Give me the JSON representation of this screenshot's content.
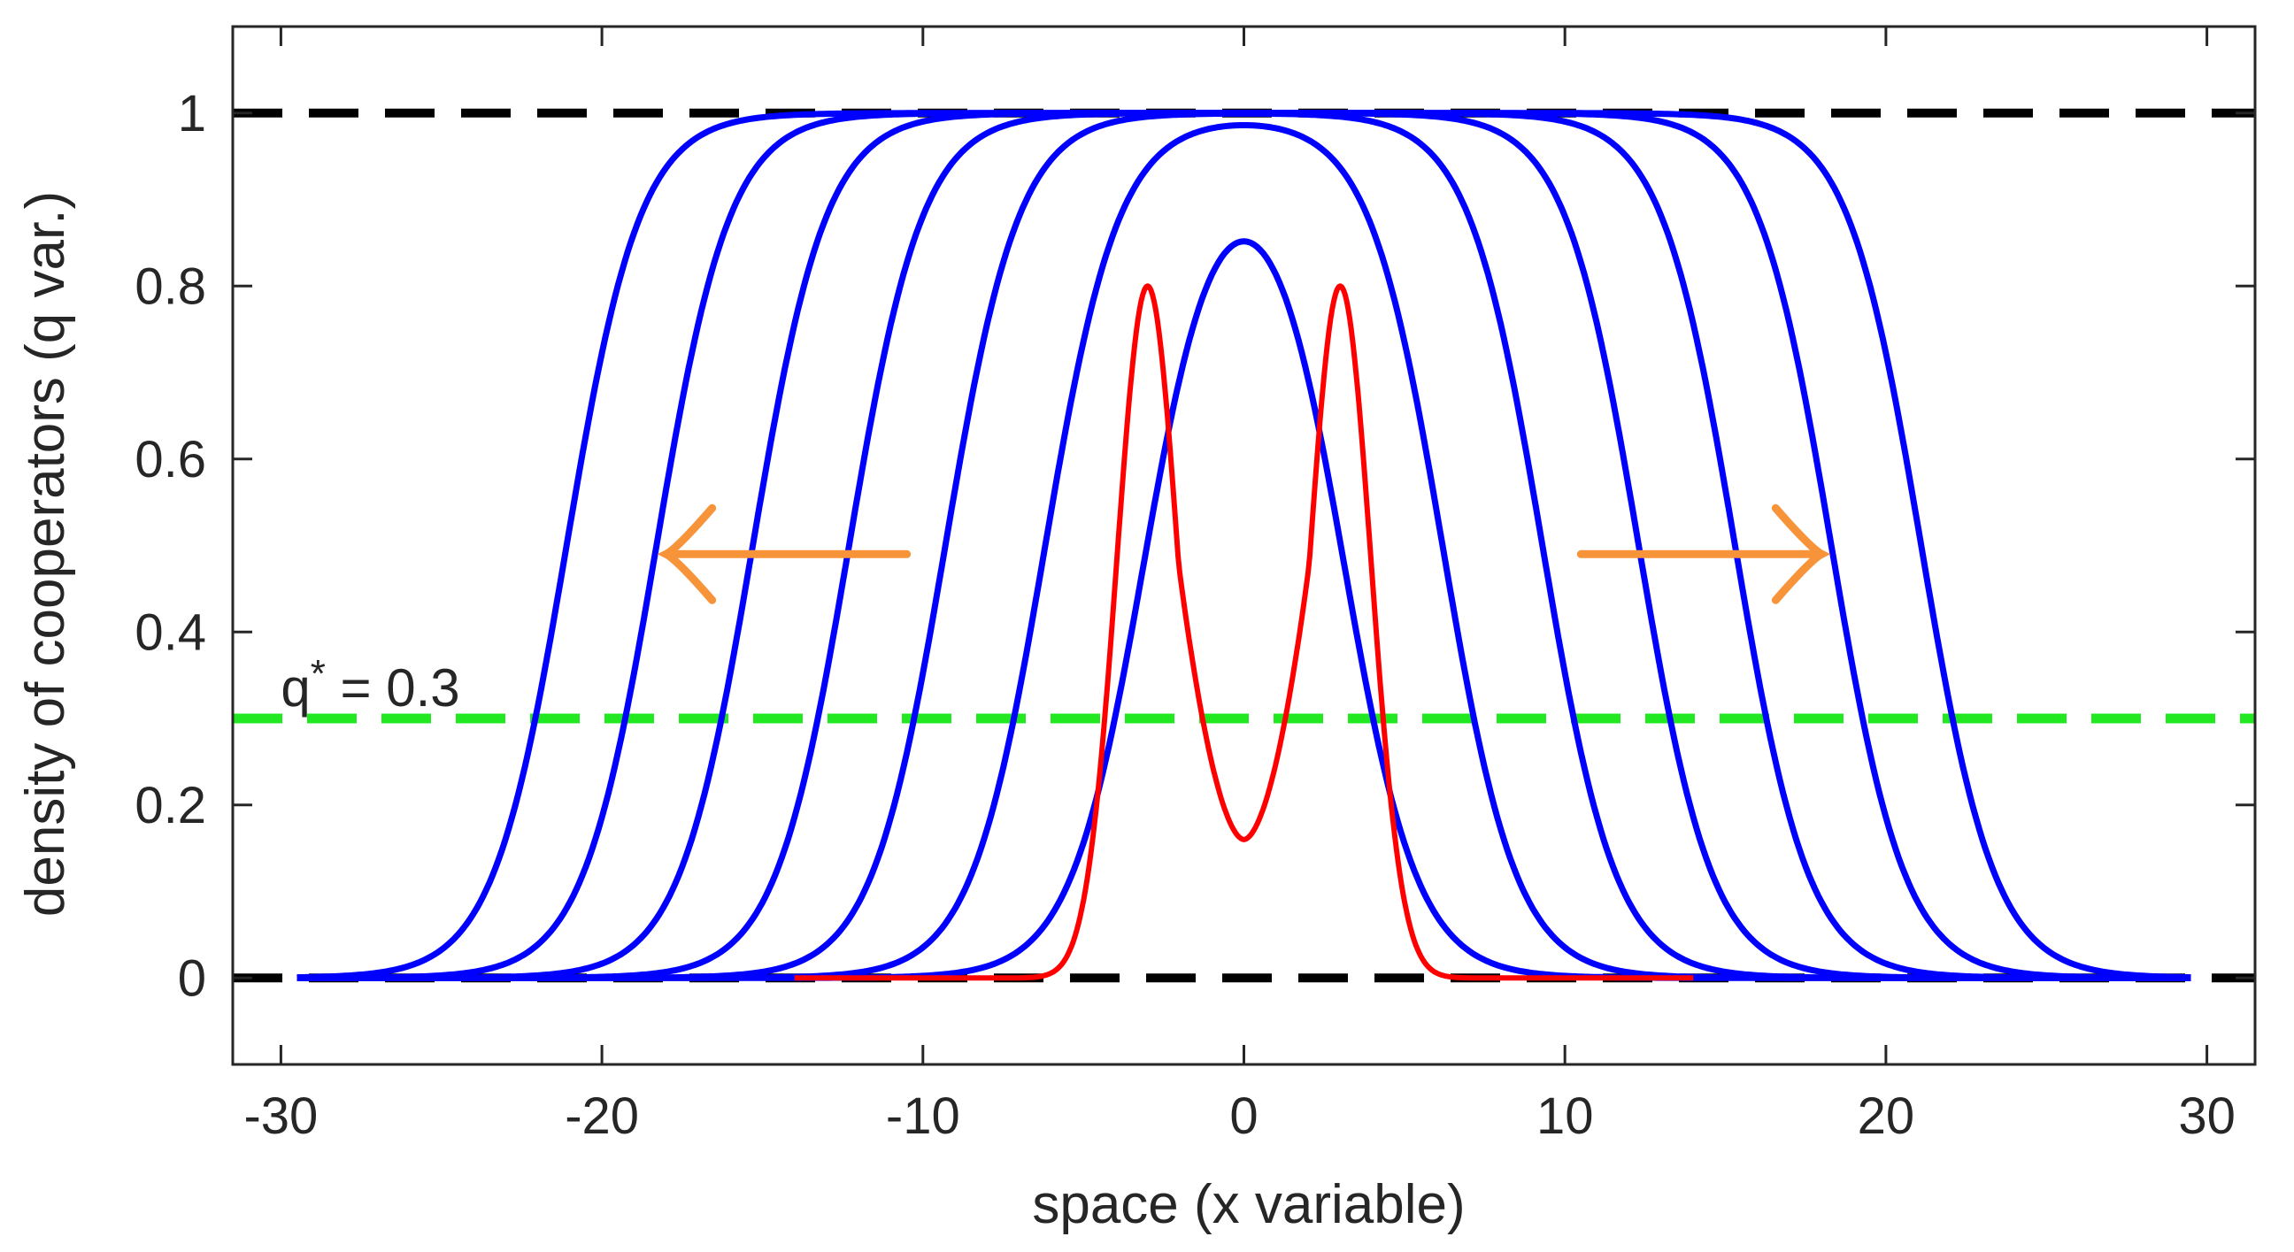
{
  "chart_data": {
    "type": "line",
    "title": "",
    "xlabel": "space (x variable)",
    "ylabel": "density of cooperators (q var.)",
    "xlim": [
      -31.5,
      31.5
    ],
    "ylim": [
      -0.1,
      1.1
    ],
    "xticks": [
      -30,
      -20,
      -10,
      0,
      10,
      20,
      30
    ],
    "xtick_labels": [
      "-30",
      "-20",
      "-10",
      "0",
      "10",
      "20",
      "30"
    ],
    "yticks": [
      0,
      0.2,
      0.4,
      0.6,
      0.8,
      1
    ],
    "ytick_labels": [
      "0",
      "0.2",
      "0.4",
      "0.6",
      "0.8",
      "1"
    ],
    "grid": false,
    "legend": null,
    "reference_lines": [
      {
        "y": 1,
        "style": "dashed",
        "color": "#000000"
      },
      {
        "y": 0,
        "style": "dashed",
        "color": "#000000"
      },
      {
        "y": 0.3,
        "style": "dashed",
        "color": "#22e822",
        "label": "q* = 0.3"
      }
    ],
    "initial_condition": {
      "color": "#ff0000",
      "description_points": {
        "x": [
          -14,
          -8,
          -6,
          -5,
          -4,
          -3,
          -2,
          -1,
          0,
          1,
          2,
          3,
          4,
          5,
          6,
          8,
          14
        ],
        "y": [
          0.0,
          0.0,
          0.03,
          0.17,
          0.55,
          0.8,
          0.55,
          0.27,
          0.16,
          0.27,
          0.55,
          0.8,
          0.55,
          0.17,
          0.03,
          0.0,
          0.0
        ]
      }
    },
    "evolving_profiles": {
      "color": "#0000ff",
      "front_half_widths_at_half_max": [
        3.1,
        6.2,
        9.3,
        12.3,
        15.3,
        18.3,
        21.1
      ],
      "peaks": [
        0.975,
        0.995,
        1.0,
        1.0,
        1.0,
        1.0,
        1.0
      ],
      "x_range": [
        -29.5,
        29.5
      ]
    },
    "annotations": {
      "q_star_label_base": "q",
      "q_star_label_sup": "*",
      "q_star_label_rest": " = 0.3",
      "arrow_color": "#f7943a",
      "arrows": [
        {
          "direction": "left",
          "x_from": -10.5,
          "x_to": -18,
          "y": 0.49
        },
        {
          "direction": "right",
          "x_from": 10.5,
          "x_to": 18,
          "y": 0.49
        }
      ]
    }
  }
}
